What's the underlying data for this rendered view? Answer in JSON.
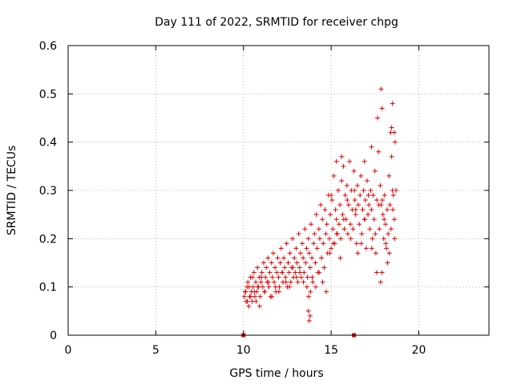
{
  "chart_data": {
    "type": "scatter",
    "title": "Day 111 of 2022, SRMTID for receiver chpg",
    "xlabel": "GPS time / hours",
    "ylabel": "SRMTID / TECUs",
    "xlim": [
      0,
      24
    ],
    "ylim": [
      0,
      0.6
    ],
    "xticks": [
      0,
      5,
      10,
      15,
      20
    ],
    "yticks": [
      0,
      0.1,
      0.2,
      0.3,
      0.4,
      0.5,
      0.6
    ],
    "xtick_labels": [
      "0",
      "5",
      "10",
      "15",
      "20"
    ],
    "ytick_labels": [
      "0",
      "0.1",
      "0.2",
      "0.3",
      "0.4",
      "0.5",
      "0.6"
    ],
    "grid": true,
    "marker": "+",
    "marker_color": "#e00000",
    "zero_markers": {
      "x": [
        10.0,
        16.3
      ],
      "y": [
        0,
        0
      ]
    },
    "series": [
      {
        "name": "SRMTID",
        "x": [
          10.05,
          10.1,
          10.15,
          10.2,
          10.25,
          10.3,
          10.35,
          10.4,
          10.45,
          10.5,
          10.55,
          10.6,
          10.65,
          10.7,
          10.75,
          10.8,
          10.85,
          10.9,
          10.95,
          11.0,
          11.05,
          11.1,
          11.15,
          11.2,
          11.25,
          11.3,
          11.35,
          11.4,
          11.45,
          11.5,
          11.55,
          11.6,
          11.65,
          11.7,
          11.75,
          11.8,
          11.85,
          11.9,
          11.95,
          12.0,
          12.05,
          12.1,
          12.15,
          12.2,
          12.25,
          12.3,
          12.35,
          12.4,
          12.45,
          12.5,
          12.55,
          12.6,
          12.65,
          12.7,
          12.75,
          12.8,
          12.85,
          12.9,
          12.95,
          13.0,
          13.05,
          13.1,
          13.15,
          13.2,
          13.25,
          13.3,
          13.35,
          13.4,
          13.45,
          13.5,
          13.55,
          13.6,
          13.65,
          13.7,
          13.75,
          13.8,
          13.85,
          13.9,
          13.95,
          14.0,
          14.05,
          14.1,
          14.15,
          14.2,
          14.25,
          14.3,
          14.35,
          14.4,
          14.45,
          14.5,
          14.55,
          14.6,
          14.65,
          14.7,
          14.75,
          14.8,
          14.85,
          14.9,
          14.95,
          15.0,
          15.05,
          15.1,
          15.15,
          15.2,
          15.25,
          15.3,
          15.35,
          15.4,
          15.45,
          15.5,
          15.55,
          15.6,
          15.65,
          15.7,
          15.75,
          15.8,
          15.85,
          15.9,
          15.95,
          16.0,
          16.05,
          16.1,
          16.15,
          16.2,
          16.25,
          16.3,
          16.35,
          16.4,
          16.45,
          16.5,
          16.55,
          16.6,
          16.65,
          16.7,
          16.75,
          16.8,
          16.85,
          16.9,
          16.95,
          17.0,
          17.05,
          17.1,
          17.15,
          17.2,
          17.25,
          17.3,
          17.35,
          17.4,
          17.45,
          17.5,
          17.55,
          17.6,
          17.65,
          17.7,
          17.75,
          17.8,
          17.85,
          17.9,
          17.95,
          18.0,
          18.05,
          18.1,
          18.15,
          18.2,
          18.25,
          18.3,
          18.35,
          18.4,
          18.45,
          18.5,
          18.55,
          18.6,
          18.65,
          18.7,
          10.12,
          10.22,
          10.32,
          10.42,
          10.52,
          10.62,
          10.72,
          10.82,
          10.92,
          11.02,
          11.22,
          11.42,
          11.62,
          11.82,
          12.02,
          12.22,
          12.42,
          12.62,
          12.82,
          13.02,
          13.22,
          13.42,
          13.62,
          13.72,
          13.82,
          13.92,
          14.12,
          14.32,
          14.52,
          14.72,
          14.92,
          15.12,
          15.32,
          15.52,
          15.72,
          15.92,
          16.12,
          16.32,
          16.52,
          16.72,
          16.92,
          17.12,
          17.32,
          17.52,
          17.72,
          17.82,
          17.92,
          18.02,
          18.12,
          18.22,
          18.32,
          18.42,
          18.52,
          18.62,
          17.85,
          17.9,
          18.45,
          18.5,
          18.6,
          13.7,
          13.75,
          13.8,
          15.0,
          15.3,
          15.6,
          16.4,
          16.9,
          17.3,
          17.6
        ],
        "y": [
          0.08,
          0.09,
          0.07,
          0.1,
          0.11,
          0.06,
          0.08,
          0.12,
          0.09,
          0.07,
          0.1,
          0.13,
          0.08,
          0.11,
          0.09,
          0.14,
          0.1,
          0.12,
          0.08,
          0.11,
          0.13,
          0.1,
          0.15,
          0.09,
          0.12,
          0.14,
          0.11,
          0.16,
          0.1,
          0.13,
          0.08,
          0.15,
          0.12,
          0.17,
          0.11,
          0.14,
          0.09,
          0.13,
          0.16,
          0.12,
          0.1,
          0.15,
          0.18,
          0.13,
          0.11,
          0.16,
          0.14,
          0.12,
          0.19,
          0.1,
          0.15,
          0.13,
          0.17,
          0.11,
          0.14,
          0.2,
          0.12,
          0.16,
          0.13,
          0.18,
          0.15,
          0.11,
          0.21,
          0.14,
          0.17,
          0.12,
          0.19,
          0.16,
          0.13,
          0.22,
          0.15,
          0.18,
          0.12,
          0.2,
          0.17,
          0.14,
          0.23,
          0.16,
          0.11,
          0.19,
          0.21,
          0.15,
          0.25,
          0.18,
          0.13,
          0.22,
          0.2,
          0.27,
          0.16,
          0.24,
          0.19,
          0.14,
          0.26,
          0.21,
          0.23,
          0.17,
          0.29,
          0.2,
          0.25,
          0.18,
          0.28,
          0.22,
          0.33,
          0.19,
          0.26,
          0.24,
          0.21,
          0.3,
          0.23,
          0.27,
          0.2,
          0.32,
          0.25,
          0.35,
          0.22,
          0.29,
          0.24,
          0.31,
          0.21,
          0.27,
          0.36,
          0.23,
          0.3,
          0.26,
          0.22,
          0.34,
          0.28,
          0.25,
          0.19,
          0.31,
          0.27,
          0.23,
          0.29,
          0.33,
          0.21,
          0.26,
          0.3,
          0.24,
          0.28,
          0.18,
          0.32,
          0.25,
          0.27,
          0.22,
          0.3,
          0.26,
          0.2,
          0.29,
          0.24,
          0.34,
          0.17,
          0.28,
          0.45,
          0.38,
          0.22,
          0.31,
          0.27,
          0.13,
          0.25,
          0.2,
          0.29,
          0.23,
          0.18,
          0.26,
          0.21,
          0.33,
          0.27,
          0.42,
          0.37,
          0.3,
          0.29,
          0.24,
          0.4,
          0.3,
          0.09,
          0.07,
          0.1,
          0.08,
          0.12,
          0.09,
          0.07,
          0.1,
          0.06,
          0.12,
          0.09,
          0.11,
          0.08,
          0.1,
          0.09,
          0.13,
          0.11,
          0.1,
          0.14,
          0.12,
          0.13,
          0.11,
          0.1,
          0.08,
          0.09,
          0.12,
          0.1,
          0.13,
          0.11,
          0.09,
          0.17,
          0.19,
          0.21,
          0.16,
          0.24,
          0.28,
          0.2,
          0.3,
          0.17,
          0.19,
          0.24,
          0.29,
          0.18,
          0.21,
          0.27,
          0.11,
          0.28,
          0.24,
          0.19,
          0.15,
          0.17,
          0.22,
          0.26,
          0.2,
          0.51,
          0.47,
          0.43,
          0.48,
          0.42,
          0.05,
          0.03,
          0.04,
          0.29,
          0.36,
          0.37,
          0.26,
          0.36,
          0.39,
          0.13
        ]
      }
    ]
  }
}
